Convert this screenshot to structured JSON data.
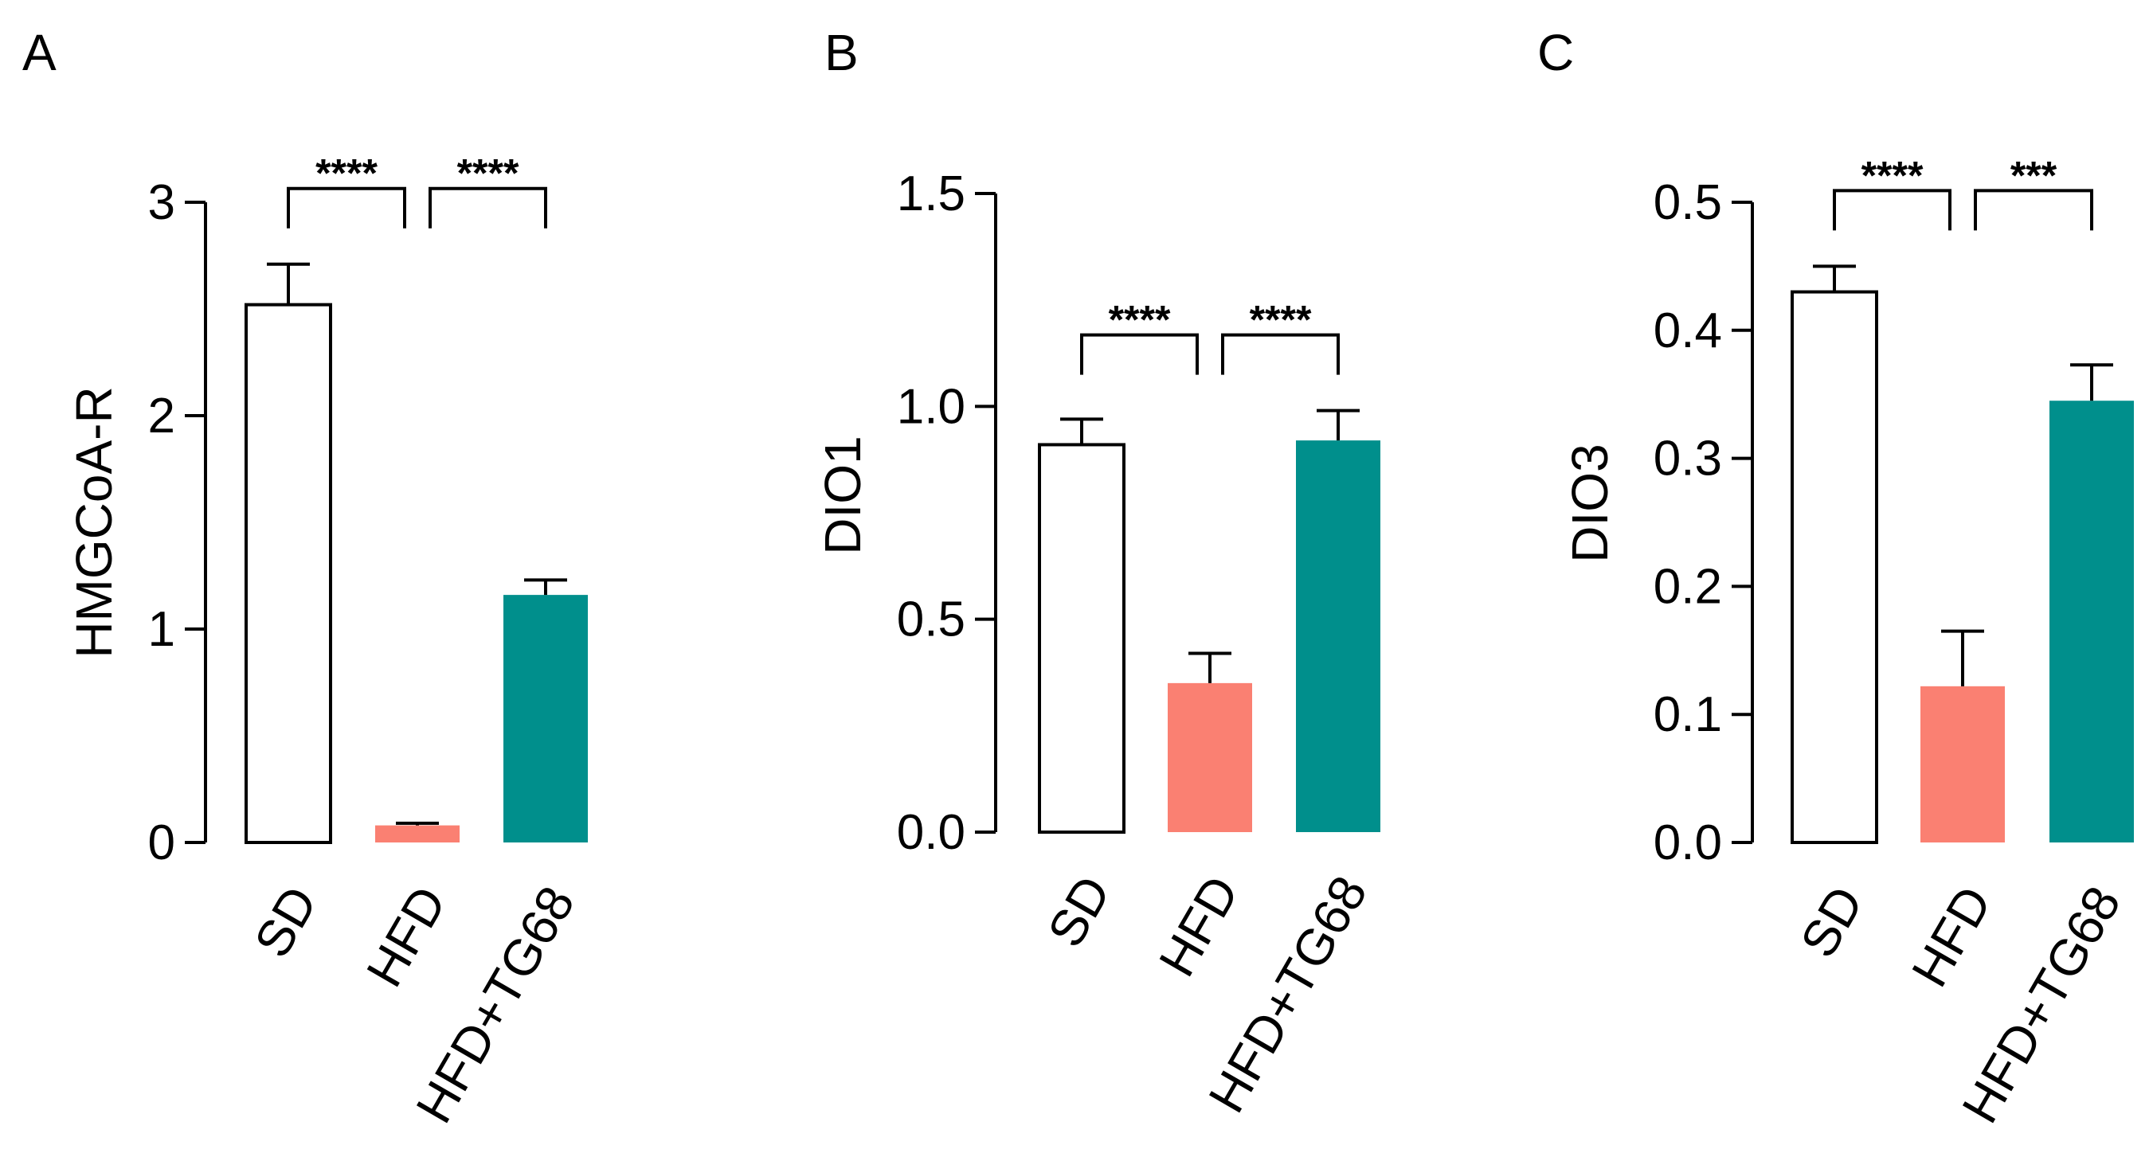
{
  "colors": {
    "SD": "#ffffff",
    "HFD": "#fa8072",
    "HFD+TG68": "#008f8c",
    "stroke": "#000000"
  },
  "chart_data": [
    {
      "type": "bar",
      "panel": "A",
      "ylabel": "HMGCoA-R",
      "categories": [
        "SD",
        "HFD",
        "HFD+TG68"
      ],
      "values": [
        2.52,
        0.08,
        1.16
      ],
      "errors": [
        0.19,
        0.01,
        0.07
      ],
      "ylim": [
        0,
        3
      ],
      "yticks": [
        0,
        1,
        2,
        3
      ],
      "ytick_labels": [
        "0",
        "1",
        "2",
        "3"
      ],
      "significance": [
        {
          "from": 0,
          "to": 1,
          "label": "****"
        },
        {
          "from": 1,
          "to": 2,
          "label": "****"
        }
      ]
    },
    {
      "type": "bar",
      "panel": "B",
      "ylabel": "DIO1",
      "categories": [
        "SD",
        "HFD",
        "HFD+TG68"
      ],
      "values": [
        0.91,
        0.35,
        0.92
      ],
      "errors": [
        0.06,
        0.07,
        0.07
      ],
      "ylim": [
        0,
        1.5
      ],
      "yticks": [
        0,
        0.5,
        1,
        1.5
      ],
      "ytick_labels": [
        "0.0",
        "0.5",
        "1.0",
        "1.5"
      ],
      "significance": [
        {
          "from": 0,
          "to": 1,
          "label": "****"
        },
        {
          "from": 1,
          "to": 2,
          "label": "****"
        }
      ]
    },
    {
      "type": "bar",
      "panel": "C",
      "ylabel": "DIO3",
      "categories": [
        "SD",
        "HFD",
        "HFD+TG68"
      ],
      "values": [
        0.43,
        0.122,
        0.345
      ],
      "errors": [
        0.02,
        0.043,
        0.028
      ],
      "ylim": [
        0,
        0.5
      ],
      "yticks": [
        0,
        0.1,
        0.2,
        0.3,
        0.4,
        0.5
      ],
      "ytick_labels": [
        "0.0",
        "0.1",
        "0.2",
        "0.3",
        "0.4",
        "0.5"
      ],
      "significance": [
        {
          "from": 0,
          "to": 1,
          "label": "****"
        },
        {
          "from": 1,
          "to": 2,
          "label": "***"
        }
      ]
    }
  ]
}
